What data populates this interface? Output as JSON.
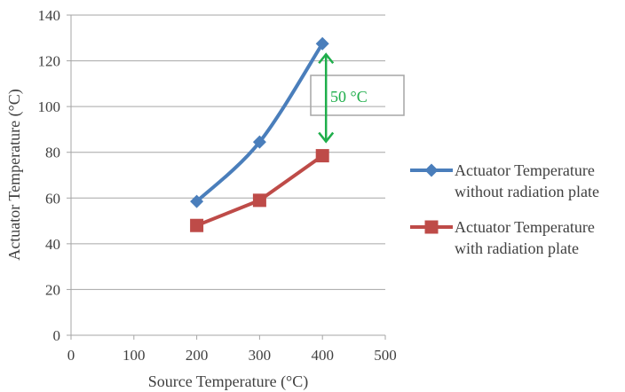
{
  "chart_data": {
    "type": "line",
    "title": "",
    "xlabel": "Source Temperature (°C)",
    "ylabel": "Actuator Temperature (°C)",
    "xlim": [
      0,
      500
    ],
    "ylim": [
      0,
      140
    ],
    "x_ticks": [
      0,
      100,
      200,
      300,
      400,
      500
    ],
    "y_ticks": [
      0,
      20,
      40,
      60,
      80,
      100,
      120,
      140
    ],
    "grid": "horizontal",
    "legend_position": "right",
    "series": [
      {
        "name_lines": [
          "Actuator Temperature",
          "without radiation plate"
        ],
        "color": "#4a7ebb",
        "marker": "diamond",
        "smooth": true,
        "x": [
          200,
          300,
          400
        ],
        "y": [
          58.5,
          84.5,
          127.5
        ]
      },
      {
        "name_lines": [
          "Actuator Temperature",
          "with radiation plate"
        ],
        "color": "#be4b48",
        "marker": "square",
        "smooth": false,
        "x": [
          200,
          300,
          400
        ],
        "y": [
          48,
          59,
          78.5
        ]
      }
    ],
    "annotation": {
      "text": "50 °C",
      "color": "#1fae4b",
      "x": 400,
      "y_from": 78.5,
      "y_to": 127.5
    }
  }
}
